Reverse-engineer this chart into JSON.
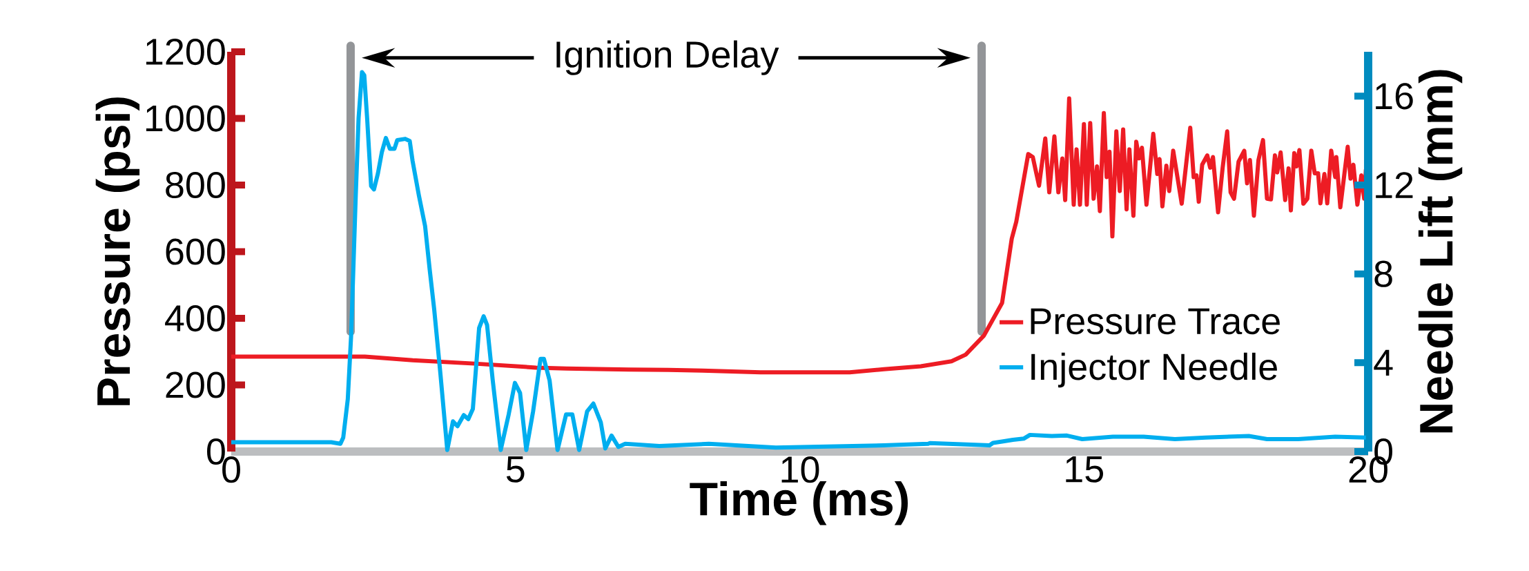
{
  "chart_data": {
    "type": "line",
    "xlabel": "Time (ms)",
    "ylabel": "Pressure (psi)",
    "y2label": "Needle Lift (mm)",
    "xlim": [
      0,
      20
    ],
    "xticks": [
      0,
      5,
      10,
      15,
      20
    ],
    "ylim": [
      0,
      1200
    ],
    "yticks": [
      0,
      200,
      400,
      600,
      800,
      1000,
      1200
    ],
    "y2lim": [
      0,
      18
    ],
    "y2ticks": [
      0,
      4,
      8,
      12,
      16
    ],
    "legend": "bottom right",
    "annotations": [
      "Ignition Delay"
    ],
    "ref_lines": [
      {
        "axis": "x",
        "value": 2.1,
        "color": "#939598"
      },
      {
        "axis": "x",
        "value": 13.2,
        "color": "#939598"
      }
    ],
    "series": [
      {
        "name": "Pressure Trace",
        "color": "#ed1c24",
        "x": [
          0,
          2.35,
          3.19,
          4.28,
          5.36,
          5.9,
          6.99,
          7.69,
          8.29,
          9.31,
          10.34,
          10.88,
          11.48,
          12.13,
          12.67,
          12.92,
          13.24,
          13.56,
          13.73,
          13.81,
          14.02,
          14.1,
          14.21,
          14.32,
          14.39,
          14.48,
          14.55,
          14.62,
          14.67,
          14.74,
          14.82,
          14.87,
          14.93,
          15.0,
          15.05,
          15.11,
          15.17,
          15.23,
          15.28,
          15.35,
          15.4,
          15.45,
          15.5,
          15.57,
          15.63,
          15.69,
          15.75,
          15.8,
          15.87,
          15.92,
          15.97,
          16.02,
          16.1,
          16.22,
          16.29,
          16.33,
          16.38,
          16.45,
          16.5,
          16.57,
          16.72,
          16.87,
          16.93,
          16.98,
          17.02,
          17.08,
          17.17,
          17.22,
          17.27,
          17.36,
          17.44,
          17.52,
          17.58,
          17.64,
          17.72,
          17.82,
          17.87,
          17.92,
          17.99,
          18.07,
          18.15,
          18.22,
          18.29,
          18.36,
          18.4,
          18.46,
          18.54,
          18.6,
          18.64,
          18.7,
          18.74,
          18.79,
          18.86,
          18.93,
          19.0,
          19.06,
          19.12,
          19.16,
          19.23,
          19.28,
          19.35,
          19.42,
          19.44,
          19.51,
          19.64,
          19.69,
          19.74,
          19.81,
          19.88,
          19.93,
          19.96
        ],
        "values": [
          285,
          285,
          274,
          264,
          252,
          249,
          246,
          245,
          243,
          238,
          238,
          238,
          247,
          256,
          271,
          291,
          348,
          446,
          639,
          690,
          893,
          884,
          798,
          940,
          778,
          946,
          778,
          880,
          755,
          1060,
          741,
          907,
          741,
          983,
          741,
          986,
          759,
          856,
          722,
          1016,
          824,
          900,
          646,
          961,
          782,
          967,
          727,
          907,
          708,
          930,
          880,
          912,
          741,
          954,
          833,
          878,
          736,
          858,
          782,
          903,
          744,
          972,
          824,
          829,
          750,
          861,
          889,
          852,
          884,
          718,
          852,
          961,
          778,
          759,
          870,
          903,
          805,
          875,
          708,
          875,
          935,
          759,
          757,
          889,
          838,
          898,
          755,
          850,
          724,
          896,
          856,
          905,
          744,
          759,
          903,
          835,
          835,
          745,
          833,
          745,
          903,
          824,
          884,
          733,
          915,
          819,
          861,
          741,
          829,
          759,
          847
        ]
      },
      {
        "name": "Injector Needle",
        "color": "#00aeef",
        "axis": "y2",
        "x": [
          0,
          1.76,
          1.92,
          1.97,
          2.05,
          2.11,
          2.19,
          2.24,
          2.3,
          2.34,
          2.39,
          2.46,
          2.51,
          2.58,
          2.65,
          2.72,
          2.79,
          2.87,
          2.92,
          3.06,
          3.14,
          3.19,
          3.3,
          3.41,
          3.49,
          3.57,
          3.68,
          3.8,
          3.9,
          3.98,
          4.09,
          4.17,
          4.25,
          4.36,
          4.44,
          4.5,
          4.6,
          4.74,
          4.88,
          4.99,
          5.08,
          5.19,
          5.31,
          5.44,
          5.5,
          5.6,
          5.74,
          5.89,
          6.0,
          6.12,
          6.26,
          6.37,
          6.5,
          6.58,
          6.69,
          6.81,
          6.93,
          7.53,
          8.4,
          9.58,
          11.48,
          12.26,
          12.29,
          13.34,
          13.4,
          13.56,
          13.75,
          13.94,
          14.05,
          14.43,
          14.7,
          14.97,
          15.51,
          16.05,
          16.6,
          17.14,
          17.9,
          18.22,
          18.77,
          19.42,
          19.96
        ],
        "values": [
          0.42,
          0.42,
          0.35,
          0.63,
          2.36,
          5.29,
          11.54,
          15.02,
          17.08,
          16.94,
          15.02,
          11.96,
          11.8,
          12.52,
          13.49,
          14.12,
          13.63,
          13.63,
          14.02,
          14.08,
          13.98,
          13.08,
          11.54,
          10.15,
          8.21,
          6.4,
          3.48,
          0.07,
          1.36,
          1.14,
          1.64,
          1.46,
          1.92,
          5.56,
          6.09,
          5.7,
          3.2,
          0.07,
          1.67,
          3.09,
          2.64,
          0.07,
          1.81,
          4.17,
          4.17,
          3.2,
          0.07,
          1.67,
          1.67,
          0.07,
          1.81,
          2.16,
          1.32,
          0.14,
          0.72,
          0.21,
          0.35,
          0.25,
          0.35,
          0.18,
          0.28,
          0.35,
          0.38,
          0.28,
          0.39,
          0.45,
          0.53,
          0.58,
          0.75,
          0.7,
          0.72,
          0.56,
          0.67,
          0.67,
          0.56,
          0.63,
          0.7,
          0.56,
          0.56,
          0.67,
          0.63
        ]
      }
    ]
  }
}
